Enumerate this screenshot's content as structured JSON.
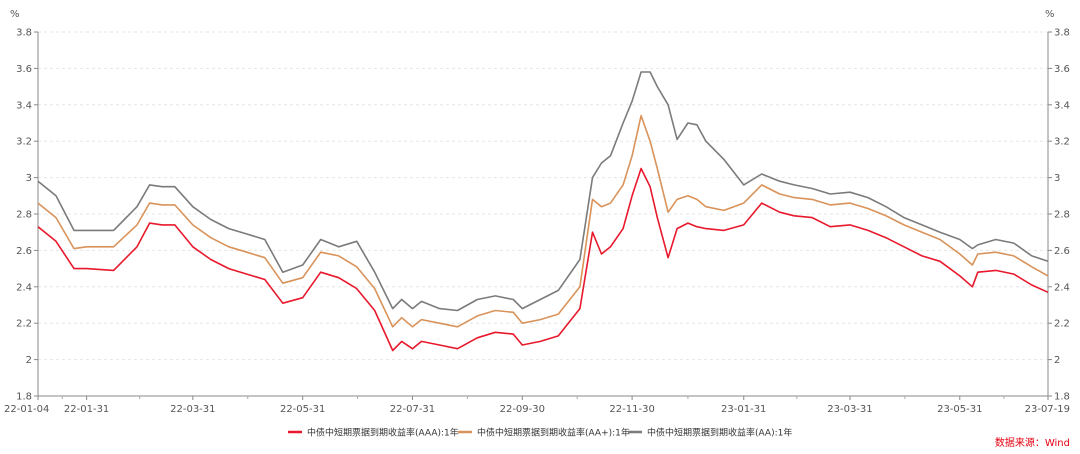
{
  "chart_data": {
    "type": "line",
    "yunit_left": "%",
    "yunit_right": "%",
    "ylim": [
      1.8,
      3.8
    ],
    "yticks": [
      1.8,
      2,
      2.2,
      2.4,
      2.6,
      2.8,
      3,
      3.2,
      3.4,
      3.6,
      3.8
    ],
    "ytick_labels": [
      "1.8",
      "2",
      "2.2",
      "2.4",
      "2.6",
      "2.8",
      "3",
      "3.2",
      "3.4",
      "3.6",
      "3.8"
    ],
    "xlim": [
      "2022-01-04",
      "2023-07-19"
    ],
    "xticks": [
      "2022-01-04",
      "2022-01-31",
      "2022-03-31",
      "2022-05-31",
      "2022-07-31",
      "2022-09-30",
      "2022-11-30",
      "2023-01-31",
      "2023-03-31",
      "2023-05-31",
      "2023-07-19"
    ],
    "xtick_labels": [
      "22-01-04",
      "22-01-31",
      "22-03-31",
      "22-05-31",
      "22-07-31",
      "22-09-30",
      "22-11-30",
      "23-01-31",
      "23-03-31",
      "23-05-31",
      "23-07-19"
    ],
    "grid": true,
    "legend_position": "bottom",
    "source_text": "数据来源：Wind",
    "series": [
      {
        "name": "中债中短期票据到期收益率(AAA):1年",
        "color": "#e8192c",
        "x": [
          "2022-01-04",
          "2022-01-14",
          "2022-01-24",
          "2022-01-31",
          "2022-02-15",
          "2022-02-28",
          "2022-03-07",
          "2022-03-14",
          "2022-03-21",
          "2022-03-31",
          "2022-04-10",
          "2022-04-20",
          "2022-04-30",
          "2022-05-10",
          "2022-05-20",
          "2022-05-31",
          "2022-06-10",
          "2022-06-20",
          "2022-06-30",
          "2022-07-10",
          "2022-07-20",
          "2022-07-25",
          "2022-07-31",
          "2022-08-05",
          "2022-08-15",
          "2022-08-25",
          "2022-09-05",
          "2022-09-15",
          "2022-09-25",
          "2022-09-30",
          "2022-10-10",
          "2022-10-20",
          "2022-11-01",
          "2022-11-08",
          "2022-11-13",
          "2022-11-18",
          "2022-11-25",
          "2022-11-30",
          "2022-12-05",
          "2022-12-10",
          "2022-12-14",
          "2022-12-20",
          "2022-12-25",
          "2022-12-31",
          "2023-01-05",
          "2023-01-10",
          "2023-01-20",
          "2023-01-31",
          "2023-02-10",
          "2023-02-20",
          "2023-02-28",
          "2023-03-10",
          "2023-03-20",
          "2023-03-31",
          "2023-04-10",
          "2023-04-20",
          "2023-04-30",
          "2023-05-10",
          "2023-05-20",
          "2023-05-31",
          "2023-06-07",
          "2023-06-10",
          "2023-06-20",
          "2023-06-30",
          "2023-07-10",
          "2023-07-19"
        ],
        "values": [
          2.73,
          2.65,
          2.5,
          2.5,
          2.49,
          2.62,
          2.75,
          2.74,
          2.74,
          2.62,
          2.55,
          2.5,
          2.47,
          2.44,
          2.31,
          2.34,
          2.48,
          2.45,
          2.39,
          2.27,
          2.05,
          2.1,
          2.06,
          2.1,
          2.08,
          2.06,
          2.12,
          2.15,
          2.14,
          2.08,
          2.1,
          2.13,
          2.28,
          2.7,
          2.58,
          2.62,
          2.72,
          2.9,
          3.05,
          2.95,
          2.78,
          2.56,
          2.72,
          2.75,
          2.73,
          2.72,
          2.71,
          2.74,
          2.86,
          2.81,
          2.79,
          2.78,
          2.73,
          2.74,
          2.71,
          2.67,
          2.62,
          2.57,
          2.54,
          2.46,
          2.4,
          2.48,
          2.49,
          2.47,
          2.41,
          2.37
        ]
      },
      {
        "name": "中债中短期票据到期收益率(AA+):1年",
        "color": "#d9935a",
        "x": [
          "2022-01-04",
          "2022-01-14",
          "2022-01-24",
          "2022-01-31",
          "2022-02-15",
          "2022-02-28",
          "2022-03-07",
          "2022-03-14",
          "2022-03-21",
          "2022-03-31",
          "2022-04-10",
          "2022-04-20",
          "2022-04-30",
          "2022-05-10",
          "2022-05-20",
          "2022-05-31",
          "2022-06-10",
          "2022-06-20",
          "2022-06-30",
          "2022-07-10",
          "2022-07-20",
          "2022-07-25",
          "2022-07-31",
          "2022-08-05",
          "2022-08-15",
          "2022-08-25",
          "2022-09-05",
          "2022-09-15",
          "2022-09-25",
          "2022-09-30",
          "2022-10-10",
          "2022-10-20",
          "2022-11-01",
          "2022-11-08",
          "2022-11-13",
          "2022-11-18",
          "2022-11-25",
          "2022-11-30",
          "2022-12-05",
          "2022-12-10",
          "2022-12-14",
          "2022-12-20",
          "2022-12-25",
          "2022-12-31",
          "2023-01-05",
          "2023-01-10",
          "2023-01-20",
          "2023-01-31",
          "2023-02-10",
          "2023-02-20",
          "2023-02-28",
          "2023-03-10",
          "2023-03-20",
          "2023-03-31",
          "2023-04-10",
          "2023-04-20",
          "2023-04-30",
          "2023-05-10",
          "2023-05-20",
          "2023-05-31",
          "2023-06-07",
          "2023-06-10",
          "2023-06-20",
          "2023-06-30",
          "2023-07-10",
          "2023-07-19"
        ],
        "values": [
          2.86,
          2.78,
          2.61,
          2.62,
          2.62,
          2.74,
          2.86,
          2.85,
          2.85,
          2.74,
          2.67,
          2.62,
          2.59,
          2.56,
          2.42,
          2.45,
          2.59,
          2.57,
          2.51,
          2.39,
          2.18,
          2.23,
          2.18,
          2.22,
          2.2,
          2.18,
          2.24,
          2.27,
          2.26,
          2.2,
          2.22,
          2.25,
          2.4,
          2.88,
          2.84,
          2.86,
          2.96,
          3.12,
          3.34,
          3.2,
          3.05,
          2.81,
          2.88,
          2.9,
          2.88,
          2.84,
          2.82,
          2.86,
          2.96,
          2.91,
          2.89,
          2.88,
          2.85,
          2.86,
          2.83,
          2.79,
          2.74,
          2.7,
          2.66,
          2.58,
          2.52,
          2.58,
          2.59,
          2.57,
          2.51,
          2.46
        ]
      },
      {
        "name": "中债中短期票据到期收益率(AA):1年",
        "color": "#7b7b7b",
        "x": [
          "2022-01-04",
          "2022-01-14",
          "2022-01-24",
          "2022-01-31",
          "2022-02-15",
          "2022-02-28",
          "2022-03-07",
          "2022-03-14",
          "2022-03-21",
          "2022-03-31",
          "2022-04-10",
          "2022-04-20",
          "2022-04-30",
          "2022-05-10",
          "2022-05-20",
          "2022-05-31",
          "2022-06-10",
          "2022-06-20",
          "2022-06-30",
          "2022-07-10",
          "2022-07-20",
          "2022-07-25",
          "2022-07-31",
          "2022-08-05",
          "2022-08-15",
          "2022-08-25",
          "2022-09-05",
          "2022-09-15",
          "2022-09-25",
          "2022-09-30",
          "2022-10-10",
          "2022-10-20",
          "2022-11-01",
          "2022-11-08",
          "2022-11-13",
          "2022-11-18",
          "2022-11-25",
          "2022-11-30",
          "2022-12-05",
          "2022-12-10",
          "2022-12-14",
          "2022-12-20",
          "2022-12-25",
          "2022-12-31",
          "2023-01-05",
          "2023-01-10",
          "2023-01-20",
          "2023-01-31",
          "2023-02-10",
          "2023-02-20",
          "2023-02-28",
          "2023-03-10",
          "2023-03-20",
          "2023-03-31",
          "2023-04-10",
          "2023-04-20",
          "2023-04-30",
          "2023-05-10",
          "2023-05-20",
          "2023-05-31",
          "2023-06-07",
          "2023-06-10",
          "2023-06-20",
          "2023-06-30",
          "2023-07-10",
          "2023-07-19"
        ],
        "values": [
          2.98,
          2.9,
          2.71,
          2.71,
          2.71,
          2.84,
          2.96,
          2.95,
          2.95,
          2.84,
          2.77,
          2.72,
          2.69,
          2.66,
          2.48,
          2.52,
          2.66,
          2.62,
          2.65,
          2.48,
          2.28,
          2.33,
          2.28,
          2.32,
          2.28,
          2.27,
          2.33,
          2.35,
          2.33,
          2.28,
          2.33,
          2.38,
          2.55,
          3.0,
          3.08,
          3.12,
          3.3,
          3.42,
          3.58,
          3.58,
          3.5,
          3.4,
          3.21,
          3.3,
          3.29,
          3.2,
          3.1,
          2.96,
          3.02,
          2.98,
          2.96,
          2.94,
          2.91,
          2.92,
          2.89,
          2.84,
          2.78,
          2.74,
          2.7,
          2.66,
          2.61,
          2.63,
          2.66,
          2.64,
          2.57,
          2.54
        ]
      }
    ]
  }
}
